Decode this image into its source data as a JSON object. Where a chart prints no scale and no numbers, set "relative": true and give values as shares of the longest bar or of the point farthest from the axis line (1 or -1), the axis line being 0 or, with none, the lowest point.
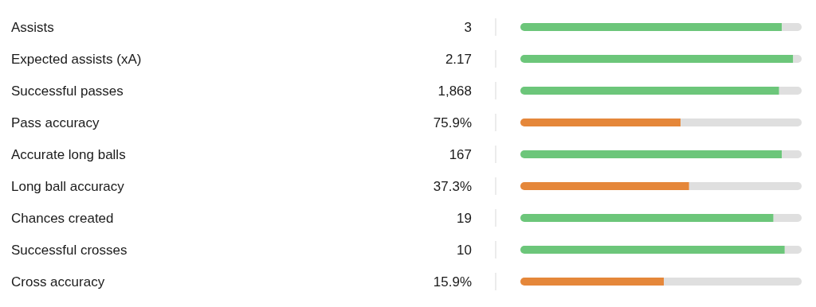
{
  "chart_data": {
    "type": "bar",
    "orientation": "horizontal",
    "stacked": true,
    "relative": true,
    "annotations": [
      "3",
      "2.17",
      "1,868",
      "75.9%",
      "167",
      "37.3%",
      "19",
      "10",
      "15.9%"
    ],
    "categories": [
      "Assists",
      "Expected assists (xA)",
      "Successful passes",
      "Pass accuracy",
      "Accurate long balls",
      "Long ball accuracy",
      "Chances created",
      "Successful crosses",
      "Cross accuracy"
    ],
    "series": [
      {
        "colors": [
          "#6cc67a",
          "#6cc67a",
          "#6cc67a",
          "#e5873a",
          "#6cc67a",
          "#e5873a",
          "#6cc67a",
          "#6cc67a",
          "#e5873a"
        ],
        "values": [
          0.93,
          0.97,
          0.92,
          0.57,
          0.93,
          0.6,
          0.9,
          0.94,
          0.51
        ]
      },
      {
        "color": "#dfdfdf",
        "values": [
          0.07,
          0.03,
          0.08,
          0.43,
          0.07,
          0.4,
          0.1,
          0.06,
          0.49
        ]
      }
    ]
  }
}
